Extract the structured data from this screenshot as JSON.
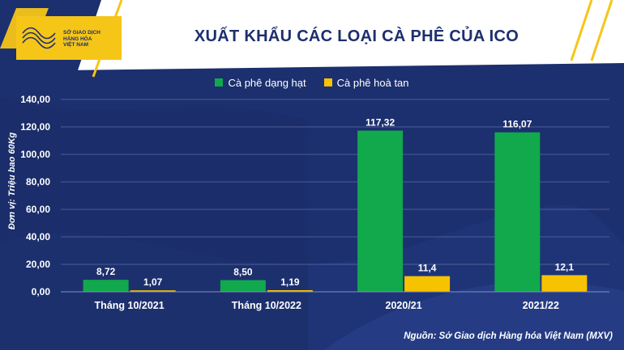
{
  "header": {
    "title": "XUẤT KHẨU CÁC LOẠI CÀ PHÊ CỦA ICO",
    "logo_lines": [
      "SỞ GIAO DỊCH",
      "HÀNG HÓA",
      "VIỆT NAM"
    ]
  },
  "source": "Nguồn: Sở Giao dịch Hàng hóa Việt Nam (MXV)",
  "colors": {
    "background": "#1c2f6e",
    "header": "#ffffff",
    "accent": "#f5c518",
    "series_green": "#12a84c",
    "series_yellow": "#f7c200"
  },
  "chart_data": {
    "type": "bar",
    "title": "XUẤT KHẨU CÁC LOẠI CÀ PHÊ CỦA ICO",
    "ylabel": "Đơn vị: Triệu bao 60Kg",
    "xlabel": "",
    "categories": [
      "Tháng 10/2021",
      "Tháng 10/2022",
      "2020/21",
      "2021/22"
    ],
    "series": [
      {
        "name": "Cà phê dạng hạt",
        "values": [
          8.72,
          8.5,
          117.32,
          116.07
        ],
        "labels": [
          "8,72",
          "8,50",
          "117,32",
          "116,07"
        ],
        "color": "#12a84c"
      },
      {
        "name": "Cà phê hoà tan",
        "values": [
          1.07,
          1.19,
          11.4,
          12.1
        ],
        "labels": [
          "1,07",
          "1,19",
          "11,4",
          "12,1"
        ],
        "color": "#f7c200"
      }
    ],
    "ylim": [
      0,
      140
    ],
    "yticks": [
      0,
      20,
      40,
      60,
      80,
      100,
      120,
      140
    ],
    "ytick_labels": [
      "0,00",
      "20,00",
      "40,00",
      "60,00",
      "80,00",
      "100,00",
      "120,00",
      "140,00"
    ],
    "grid": true,
    "legend": "top-center"
  }
}
